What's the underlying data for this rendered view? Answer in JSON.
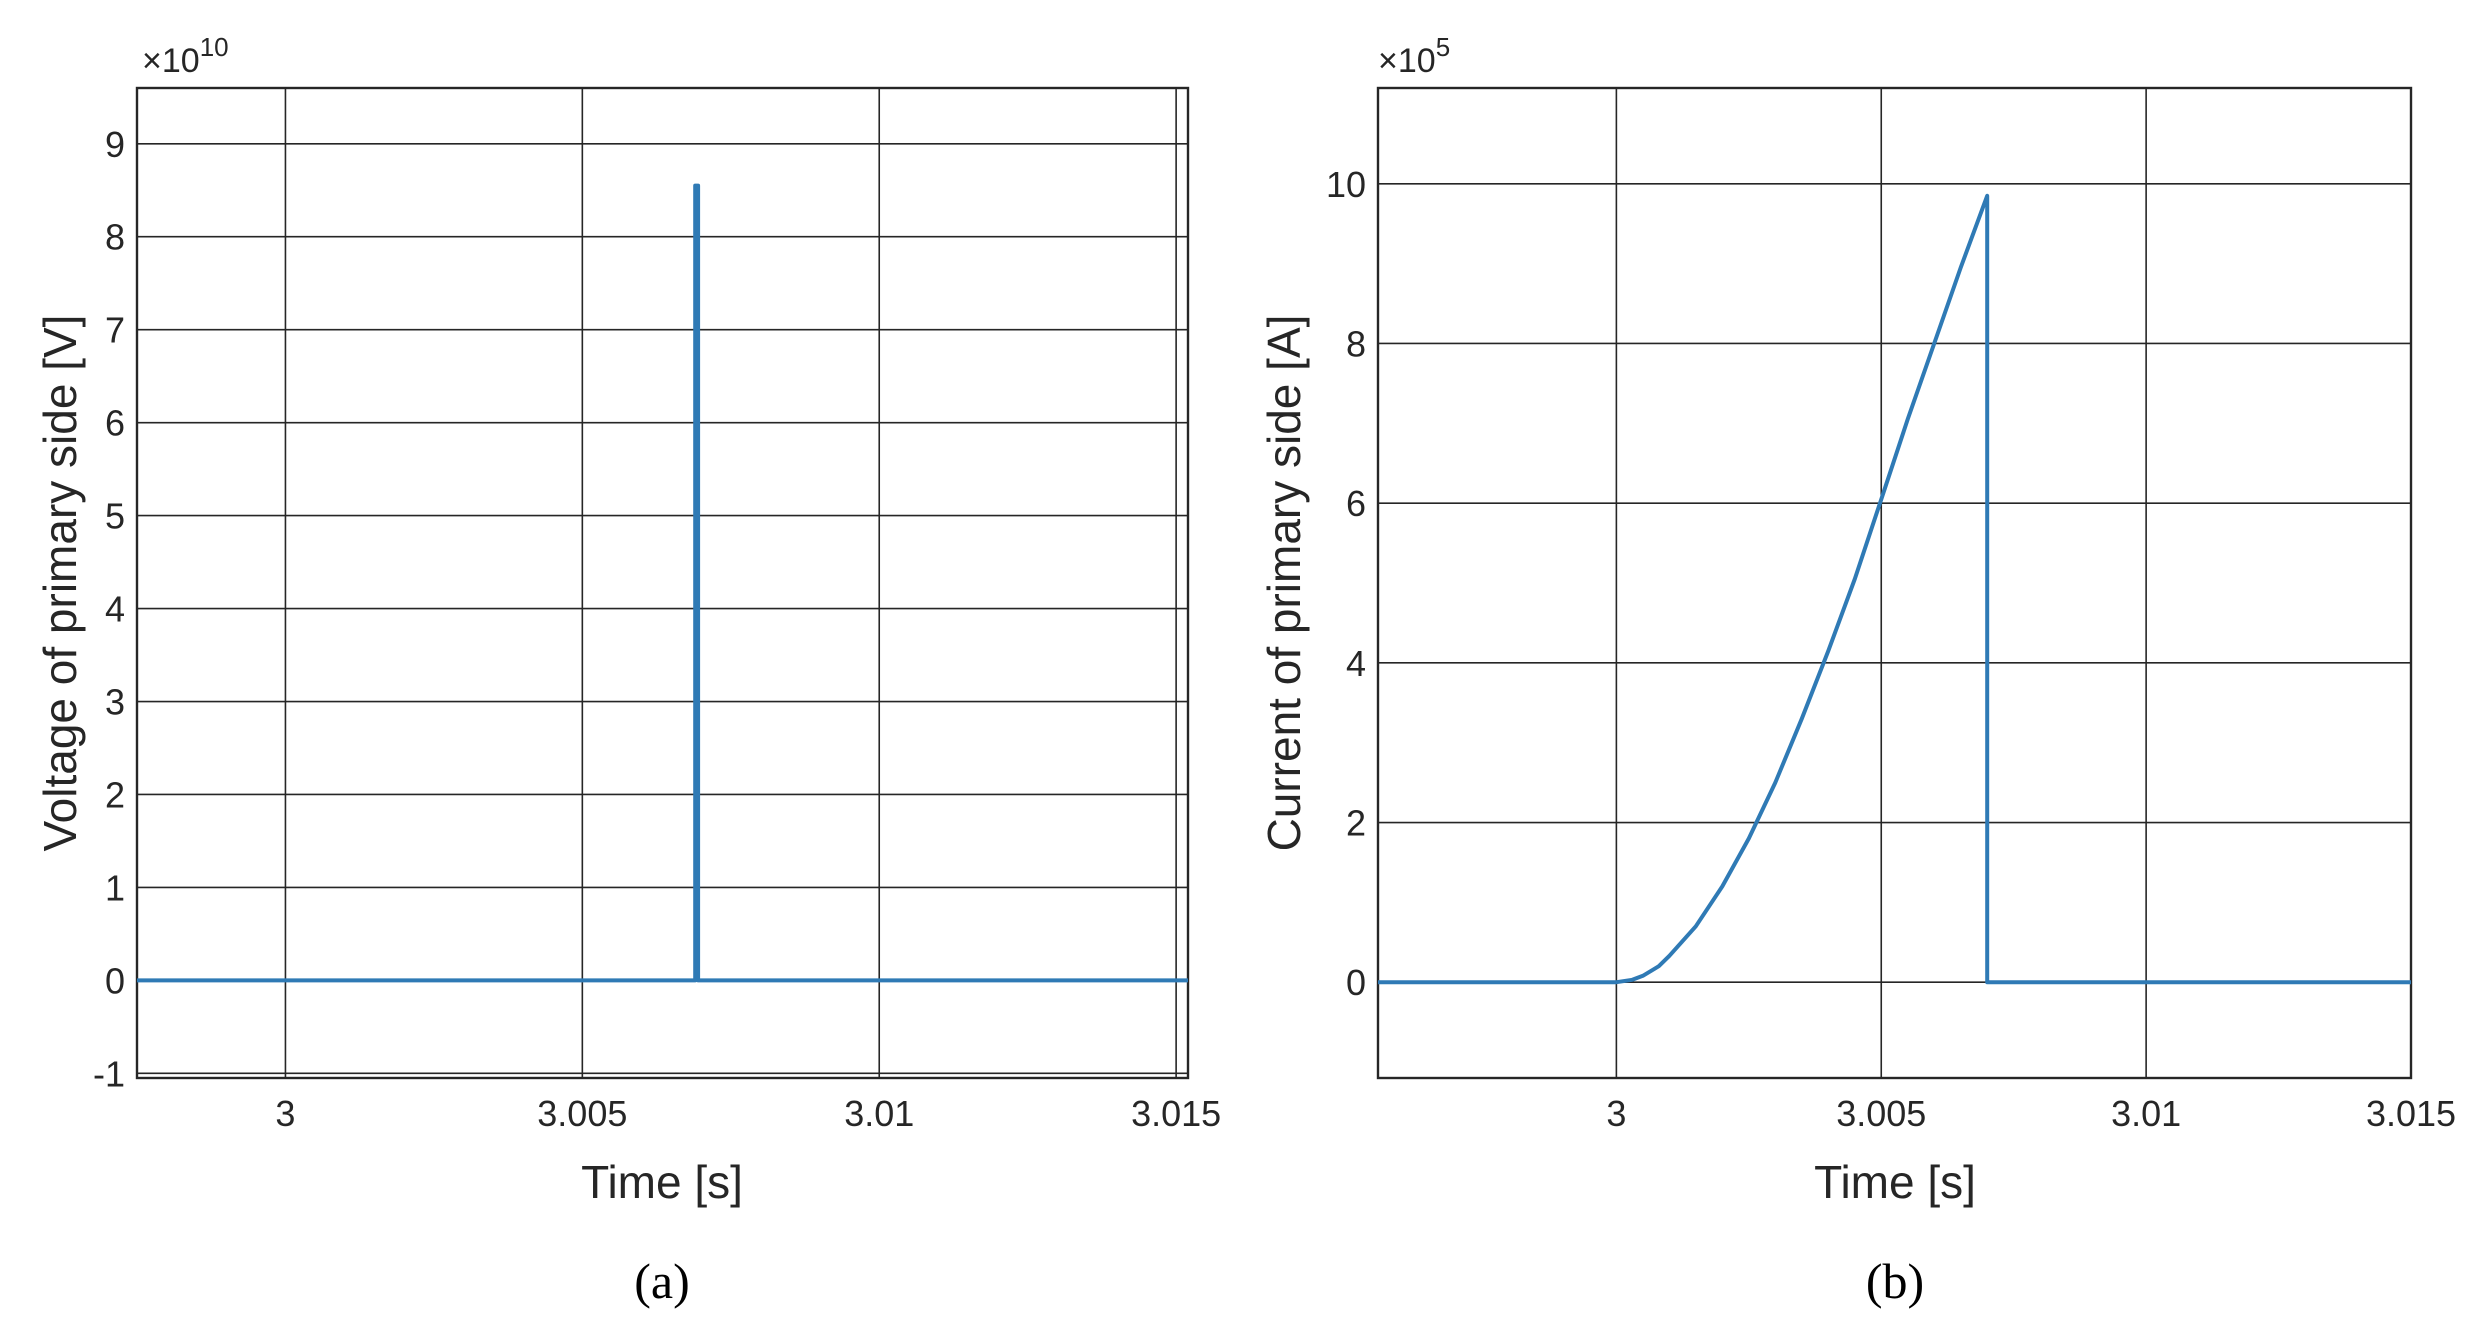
{
  "chart_data": [
    {
      "type": "line",
      "caption": "(a)",
      "xlabel": "Time [s]",
      "ylabel": "Voltage of primary side [V]",
      "y_exponent_base": "×10",
      "y_exponent_power": "10",
      "xlim": [
        2.9975,
        3.0152
      ],
      "ylim": [
        -1.05,
        9.6
      ],
      "x_ticks": [
        3,
        3.005,
        3.01,
        3.015
      ],
      "x_tick_labels": [
        "3",
        "3.005",
        "3.01",
        "3.015"
      ],
      "y_ticks": [
        -1,
        0,
        1,
        2,
        3,
        4,
        5,
        6,
        7,
        8,
        9
      ],
      "y_tick_labels": [
        "-1",
        "0",
        "1",
        "2",
        "3",
        "4",
        "5",
        "6",
        "7",
        "8",
        "9"
      ],
      "grid": true,
      "series": [
        {
          "color": "#2f7ab5",
          "x": [
            2.9975,
            3.0069,
            3.0069,
            3.00695,
            3.00695,
            3.0152
          ],
          "y": [
            0,
            0,
            8.55,
            8.55,
            0,
            0
          ]
        }
      ]
    },
    {
      "type": "line",
      "caption": "(b)",
      "xlabel": "Time [s]",
      "ylabel": "Current of primary side [A]",
      "y_exponent_base": "×10",
      "y_exponent_power": "5",
      "xlim": [
        2.9955,
        3.015
      ],
      "ylim": [
        -1.2,
        11.2
      ],
      "x_ticks": [
        3,
        3.005,
        3.01,
        3.015
      ],
      "x_tick_labels": [
        "3",
        "3.005",
        "3.01",
        "3.015"
      ],
      "y_ticks": [
        0,
        2,
        4,
        6,
        8,
        10
      ],
      "y_tick_labels": [
        "0",
        "2",
        "4",
        "6",
        "8",
        "10"
      ],
      "grid": true,
      "series": [
        {
          "color": "#2f7ab5",
          "x": [
            2.9955,
            3.0,
            3.0003,
            3.0005,
            3.0008,
            3.001,
            3.0015,
            3.002,
            3.0025,
            3.003,
            3.0035,
            3.004,
            3.0045,
            3.005,
            3.0055,
            3.006,
            3.0065,
            3.007,
            3.007,
            3.015
          ],
          "y": [
            0,
            0,
            0.03,
            0.08,
            0.2,
            0.33,
            0.7,
            1.2,
            1.8,
            2.5,
            3.3,
            4.15,
            5.05,
            6.05,
            7.05,
            8.0,
            8.95,
            9.85,
            0,
            0
          ]
        }
      ]
    }
  ]
}
